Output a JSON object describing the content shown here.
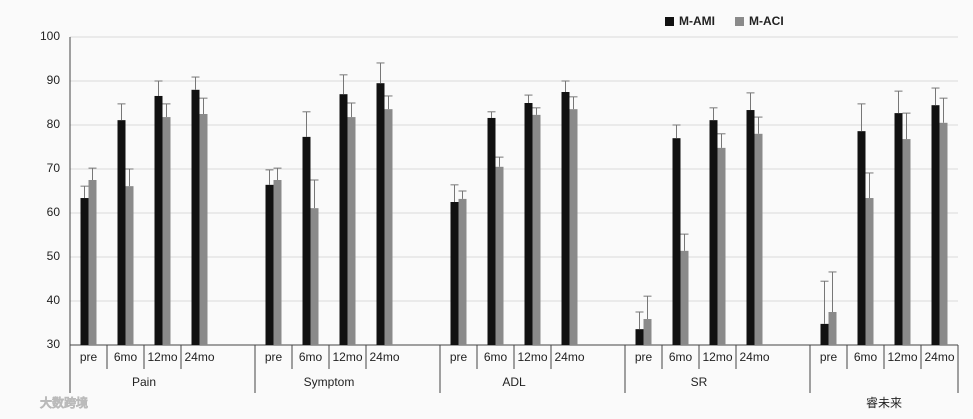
{
  "chart_data": {
    "type": "bar",
    "groups": [
      "Pain",
      "Symptom",
      "ADL",
      "SR",
      null
    ],
    "subcategories": [
      "pre",
      "6mo",
      "12mo",
      "24mo"
    ],
    "series": [
      {
        "name": "M-AMI",
        "color": "#111111",
        "values": [
          63.4,
          81.1,
          86.6,
          88.0,
          66.4,
          77.3,
          87.0,
          89.5,
          62.5,
          81.6,
          85.0,
          87.5,
          33.6,
          77.0,
          81.1,
          83.4,
          34.8,
          78.6,
          82.7,
          84.5
        ],
        "errors": [
          2.7,
          3.7,
          3.4,
          2.9,
          3.4,
          5.7,
          4.4,
          4.6,
          3.9,
          1.4,
          1.8,
          2.5,
          3.9,
          3.0,
          2.8,
          3.9,
          9.7,
          6.2,
          5.0,
          3.9
        ]
      },
      {
        "name": "M-ACI",
        "color": "#8a8a8a",
        "values": [
          67.5,
          66.1,
          81.8,
          82.5,
          67.5,
          61.1,
          81.8,
          83.6,
          63.2,
          70.5,
          82.3,
          83.6,
          35.9,
          51.4,
          74.8,
          78.0,
          37.5,
          63.4,
          76.8,
          80.5
        ],
        "errors": [
          2.7,
          3.9,
          3.0,
          3.6,
          2.7,
          6.4,
          3.2,
          3.0,
          1.8,
          2.2,
          1.6,
          2.8,
          5.2,
          3.8,
          3.2,
          3.8,
          9.1,
          5.7,
          5.9,
          5.6
        ]
      }
    ],
    "ylim": [
      30,
      100
    ],
    "yticks": [
      30,
      40,
      50,
      60,
      70,
      80,
      90,
      100
    ],
    "grid": true,
    "legend": "top-right",
    "watermarks": [
      "大数跨境",
      "睿未来"
    ]
  }
}
